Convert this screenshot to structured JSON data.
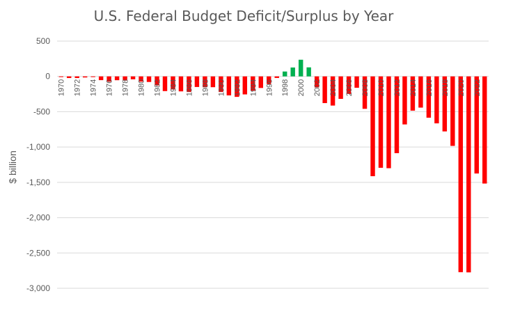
{
  "chart_data": {
    "type": "bar",
    "title": "U.S. Federal Budget Deficit/Surplus by Year",
    "ylabel": "$ billion",
    "xlabel": "",
    "ylim": [
      -3000,
      500
    ],
    "yticks": [
      500,
      0,
      -500,
      -1000,
      -1500,
      -2000,
      -2500,
      -3000
    ],
    "ytick_labels": [
      "500",
      "0",
      "-500",
      "-1,000",
      "-1,500",
      "-2,000",
      "-2,500",
      "-3,000"
    ],
    "grid": true,
    "legend": "none",
    "colors": {
      "deficit": "#ff0000",
      "surplus": "#00b050"
    },
    "x_tick_labels": [
      "1970",
      "1972",
      "1974",
      "1976",
      "1978",
      "1980",
      "1982",
      "1984",
      "1986",
      "1988",
      "1990",
      "1992",
      "1994",
      "1996",
      "1998",
      "2000",
      "2002",
      "2004",
      "2006",
      "2008",
      "2010",
      "2012",
      "2014",
      "2016",
      "2018",
      "2020",
      "2022"
    ],
    "categories": [
      "1970",
      "1971",
      "1972",
      "1973",
      "1974",
      "1975",
      "1976",
      "1977",
      "1978",
      "1979",
      "1980",
      "1981",
      "1982",
      "1983",
      "1984",
      "1985",
      "1986",
      "1987",
      "1988",
      "1989",
      "1990",
      "1991",
      "1992",
      "1993",
      "1994",
      "1995",
      "1996",
      "1997",
      "1998",
      "1999",
      "2000",
      "2001",
      "2002",
      "2003",
      "2004",
      "2005",
      "2006",
      "2007",
      "2008",
      "2009",
      "2010",
      "2011",
      "2012",
      "2013",
      "2014",
      "2015",
      "2016",
      "2017",
      "2018",
      "2019",
      "2020",
      "2021",
      "2022",
      "2023"
    ],
    "values": [
      -3,
      -23,
      -23,
      -15,
      -6,
      -53,
      -74,
      -54,
      -59,
      -41,
      -74,
      -79,
      -128,
      -208,
      -185,
      -212,
      -221,
      -150,
      -155,
      -153,
      -221,
      -269,
      -290,
      -255,
      -203,
      -164,
      -107,
      -22,
      69,
      126,
      236,
      128,
      -158,
      -378,
      -413,
      -318,
      -248,
      -161,
      -459,
      -1413,
      -1294,
      -1300,
      -1087,
      -680,
      -485,
      -442,
      -585,
      -665,
      -779,
      -984,
      -2772,
      -2775,
      -1375,
      -1517
    ]
  }
}
